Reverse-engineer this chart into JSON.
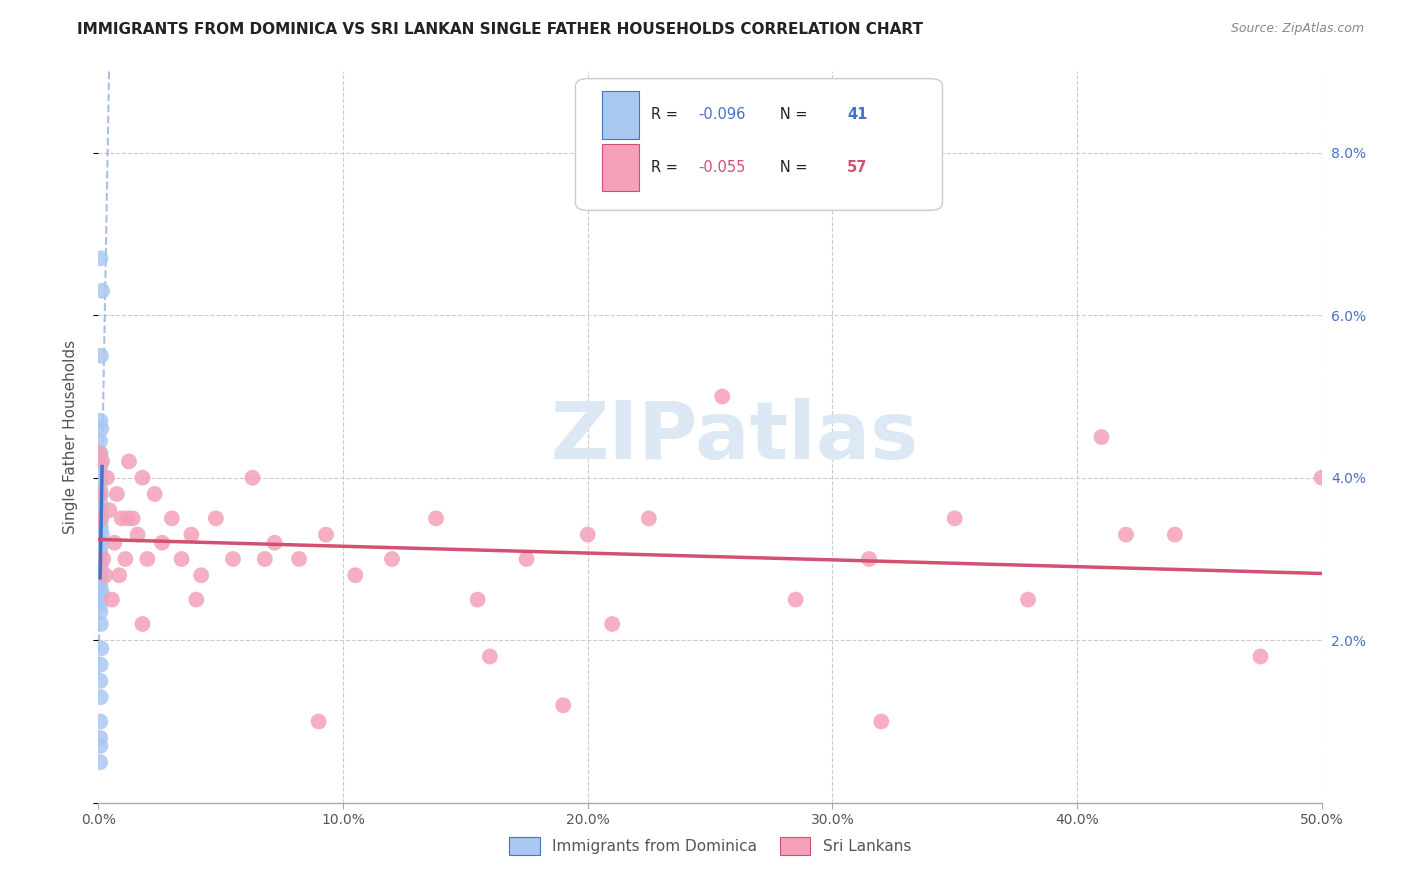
{
  "title": "IMMIGRANTS FROM DOMINICA VS SRI LANKAN SINGLE FATHER HOUSEHOLDS CORRELATION CHART",
  "source": "Source: ZipAtlas.com",
  "ylabel": "Single Father Households",
  "xlim": [
    0.0,
    0.5
  ],
  "ylim": [
    0.0,
    0.09
  ],
  "legend_label1": "Immigrants from Dominica",
  "legend_label2": "Sri Lankans",
  "R1": "-0.096",
  "N1": "41",
  "R2": "-0.055",
  "N2": "57",
  "color1": "#a8c8f0",
  "color1_line": "#4472c4",
  "color2": "#f4a0b8",
  "color2_line": "#d45070",
  "color_blue_text": "#4472c4",
  "color_pink_text": "#d45070",
  "bg_color": "#ffffff",
  "blue_points_x": [
    0.0008,
    0.0015,
    0.001,
    0.0008,
    0.0012,
    0.0007,
    0.0009,
    0.0008,
    0.001,
    0.0007,
    0.0008,
    0.0009,
    0.0008,
    0.001,
    0.0012,
    0.0008,
    0.001,
    0.0014,
    0.001,
    0.0008,
    0.0007,
    0.0008,
    0.0009,
    0.001,
    0.0008,
    0.0007,
    0.0009,
    0.0008,
    0.0015,
    0.0007,
    0.0008,
    0.0008,
    0.001,
    0.0012,
    0.0009,
    0.0008,
    0.0009,
    0.0008,
    0.0007,
    0.0008,
    0.0007
  ],
  "blue_points_y": [
    0.067,
    0.063,
    0.055,
    0.047,
    0.046,
    0.0445,
    0.043,
    0.0415,
    0.0405,
    0.0395,
    0.0385,
    0.0378,
    0.0368,
    0.036,
    0.0352,
    0.0345,
    0.0338,
    0.033,
    0.0322,
    0.0315,
    0.031,
    0.0305,
    0.0298,
    0.0292,
    0.0285,
    0.028,
    0.0272,
    0.0265,
    0.0258,
    0.0252,
    0.0245,
    0.0235,
    0.022,
    0.019,
    0.017,
    0.015,
    0.013,
    0.01,
    0.008,
    0.007,
    0.005
  ],
  "pink_points_x": [
    0.0005,
    0.0008,
    0.001,
    0.0015,
    0.002,
    0.0028,
    0.0035,
    0.0045,
    0.0055,
    0.0065,
    0.0075,
    0.0085,
    0.0095,
    0.011,
    0.0125,
    0.014,
    0.016,
    0.018,
    0.02,
    0.023,
    0.026,
    0.03,
    0.034,
    0.038,
    0.042,
    0.048,
    0.055,
    0.063,
    0.072,
    0.082,
    0.093,
    0.105,
    0.12,
    0.138,
    0.155,
    0.175,
    0.2,
    0.225,
    0.255,
    0.285,
    0.315,
    0.35,
    0.38,
    0.41,
    0.44,
    0.475,
    0.5,
    0.21,
    0.16,
    0.068,
    0.04,
    0.018,
    0.012,
    0.19,
    0.32,
    0.42,
    0.09
  ],
  "pink_points_y": [
    0.043,
    0.038,
    0.035,
    0.042,
    0.03,
    0.028,
    0.04,
    0.036,
    0.025,
    0.032,
    0.038,
    0.028,
    0.035,
    0.03,
    0.042,
    0.035,
    0.033,
    0.04,
    0.03,
    0.038,
    0.032,
    0.035,
    0.03,
    0.033,
    0.028,
    0.035,
    0.03,
    0.04,
    0.032,
    0.03,
    0.033,
    0.028,
    0.03,
    0.035,
    0.025,
    0.03,
    0.033,
    0.035,
    0.05,
    0.025,
    0.03,
    0.035,
    0.025,
    0.045,
    0.033,
    0.018,
    0.04,
    0.022,
    0.018,
    0.03,
    0.025,
    0.022,
    0.035,
    0.012,
    0.01,
    0.033,
    0.01
  ]
}
